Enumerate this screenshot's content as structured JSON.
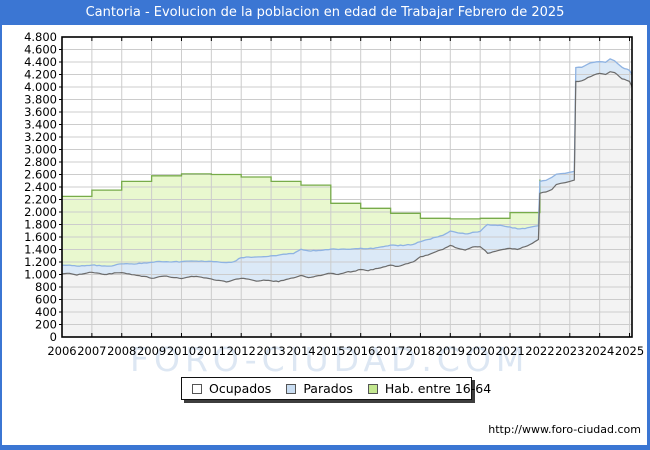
{
  "colors": {
    "frame_blue": "#3b76d3",
    "grid": "#cccccc",
    "plot_border": "#000000",
    "watermark": "#dde7f3",
    "axis_text": "#000000"
  },
  "watermark": {
    "text": "FORO-CIUDAD.COM"
  },
  "footer": {
    "url": "http://www.foro-ciudad.com"
  },
  "legend": {
    "items": [
      {
        "label": "Ocupados",
        "swatch": "#ffffff"
      },
      {
        "label": "Parados",
        "swatch": "#c9ddf2"
      },
      {
        "label": "Hab. entre 16-64",
        "swatch": "#c3e78f"
      }
    ]
  },
  "chart_data": {
    "type": "area",
    "title": "Cantoria - Evolucion de la poblacion en edad de Trabajar Febrero de 2025",
    "xlabel": "",
    "ylabel": "",
    "x_range": [
      2006,
      2025.083
    ],
    "y_range": [
      0,
      4800
    ],
    "grid": true,
    "legend_position": "bottom-center",
    "jitter": 7,
    "x_ticks": [
      2006,
      2007,
      2008,
      2009,
      2010,
      2011,
      2012,
      2013,
      2014,
      2015,
      2016,
      2017,
      2018,
      2019,
      2020,
      2021,
      2022,
      2023,
      2024,
      2025
    ],
    "x_tick_labels": [
      "2006",
      "2007",
      "2008",
      "2009",
      "2010",
      "2011",
      "2012",
      "2013",
      "2014",
      "2015",
      "2016",
      "2017",
      "2018",
      "2019",
      "2020",
      "2021",
      "2022",
      "2023",
      "2024",
      "2025"
    ],
    "y_ticks": [
      0,
      200,
      400,
      600,
      800,
      1000,
      1200,
      1400,
      1600,
      1800,
      2000,
      2200,
      2400,
      2600,
      2800,
      3000,
      3200,
      3400,
      3600,
      3800,
      4000,
      4200,
      4400,
      4600,
      4800
    ],
    "y_tick_labels": [
      "0",
      "200",
      "400",
      "600",
      "800",
      "1.000",
      "1.200",
      "1.400",
      "1.600",
      "1.800",
      "2.000",
      "2.200",
      "2.400",
      "2.600",
      "2.800",
      "3.000",
      "3.200",
      "3.400",
      "3.600",
      "3.800",
      "4.000",
      "4.200",
      "4.400",
      "4.600",
      "4.800"
    ],
    "series": [
      {
        "name": "Ocupados",
        "mode": "area-base",
        "fill": "#f3f3f3",
        "stroke": "#6b6b6b",
        "x": [
          2006,
          2006.25,
          2006.5,
          2006.75,
          2007,
          2007.25,
          2007.5,
          2007.75,
          2008,
          2008.25,
          2008.5,
          2008.75,
          2009,
          2009.25,
          2009.5,
          2009.75,
          2010,
          2010.25,
          2010.5,
          2010.75,
          2011,
          2011.25,
          2011.5,
          2011.75,
          2012,
          2012.25,
          2012.5,
          2012.75,
          2013,
          2013.25,
          2013.5,
          2013.75,
          2014,
          2014.25,
          2014.5,
          2014.75,
          2015,
          2015.25,
          2015.5,
          2015.75,
          2016,
          2016.25,
          2016.5,
          2016.75,
          2017,
          2017.25,
          2017.5,
          2017.75,
          2018,
          2018.25,
          2018.5,
          2018.75,
          2019,
          2019.25,
          2019.5,
          2019.75,
          2020,
          2020.25,
          2020.5,
          2020.75,
          2021,
          2021.25,
          2021.5,
          2021.75,
          2021.95,
          2022.0,
          2022.2,
          2022.4,
          2022.55,
          2022.7,
          2022.85,
          2023.0,
          2023.15,
          2023.2,
          2023.4,
          2023.6,
          2023.8,
          2024.0,
          2024.2,
          2024.35,
          2024.5,
          2024.75,
          2025.0,
          2025.083
        ],
        "values": [
          1010,
          1020,
          990,
          1015,
          1035,
          1020,
          1000,
          1025,
          1030,
          1010,
          985,
          970,
          940,
          965,
          975,
          950,
          935,
          960,
          970,
          945,
          930,
          905,
          880,
          915,
          940,
          925,
          895,
          910,
          900,
          885,
          920,
          945,
          985,
          950,
          975,
          995,
          1020,
          1000,
          1035,
          1050,
          1080,
          1060,
          1095,
          1120,
          1150,
          1130,
          1170,
          1200,
          1285,
          1310,
          1360,
          1400,
          1465,
          1420,
          1390,
          1440,
          1445,
          1340,
          1370,
          1400,
          1420,
          1400,
          1445,
          1500,
          1560,
          2300,
          2320,
          2360,
          2440,
          2460,
          2470,
          2490,
          2510,
          4090,
          4100,
          4150,
          4190,
          4220,
          4200,
          4245,
          4230,
          4130,
          4090,
          4005
        ]
      },
      {
        "name": "Parados",
        "mode": "area-stacked-on-previous",
        "fill": "#dbe9f7",
        "stroke": "#8fb3e2",
        "x": [
          2006,
          2006.25,
          2006.5,
          2006.75,
          2007,
          2007.25,
          2007.5,
          2007.75,
          2008,
          2008.25,
          2008.5,
          2008.75,
          2009,
          2009.25,
          2009.5,
          2009.75,
          2010,
          2010.25,
          2010.5,
          2010.75,
          2011,
          2011.25,
          2011.5,
          2011.75,
          2012,
          2012.25,
          2012.5,
          2012.75,
          2013,
          2013.25,
          2013.5,
          2013.75,
          2014,
          2014.25,
          2014.5,
          2014.75,
          2015,
          2015.25,
          2015.5,
          2015.75,
          2016,
          2016.25,
          2016.5,
          2016.75,
          2017,
          2017.25,
          2017.5,
          2017.75,
          2018,
          2018.25,
          2018.5,
          2018.75,
          2019,
          2019.25,
          2019.5,
          2019.75,
          2020,
          2020.25,
          2020.5,
          2020.75,
          2021,
          2021.25,
          2021.5,
          2021.75,
          2021.95,
          2022.0,
          2022.2,
          2022.4,
          2022.55,
          2022.7,
          2022.85,
          2023.0,
          2023.15,
          2023.2,
          2023.4,
          2023.6,
          2023.8,
          2024.0,
          2024.2,
          2024.35,
          2024.5,
          2024.75,
          2025.0,
          2025.083
        ],
        "values": [
          140,
          130,
          145,
          125,
          115,
          125,
          135,
          120,
          140,
          160,
          185,
          215,
          255,
          245,
          230,
          255,
          270,
          255,
          245,
          265,
          280,
          295,
          310,
          290,
          330,
          355,
          385,
          375,
          400,
          425,
          405,
          390,
          420,
          430,
          405,
          395,
          385,
          400,
          370,
          360,
          340,
          355,
          330,
          325,
          320,
          330,
          300,
          280,
          240,
          250,
          235,
          225,
          230,
          245,
          260,
          235,
          245,
          460,
          420,
          380,
          340,
          330,
          290,
          265,
          220,
          190,
          185,
          195,
          165,
          155,
          150,
          145,
          140,
          220,
          215,
          215,
          205,
          185,
          195,
          205,
          190,
          185,
          175,
          195
        ]
      },
      {
        "name": "Hab. entre 16-64",
        "mode": "area-step-yearly",
        "fill": "#e9f8cf",
        "stroke": "#77ab4a",
        "years": [
          2006,
          2007,
          2008,
          2009,
          2010,
          2011,
          2012,
          2013,
          2014,
          2015,
          2016,
          2017,
          2018,
          2019,
          2020,
          2021,
          2022
        ],
        "values": [
          2250,
          2350,
          2490,
          2580,
          2610,
          2600,
          2560,
          2490,
          2430,
          2140,
          2060,
          1980,
          1900,
          1890,
          1900,
          1990,
          2520
        ]
      }
    ]
  }
}
